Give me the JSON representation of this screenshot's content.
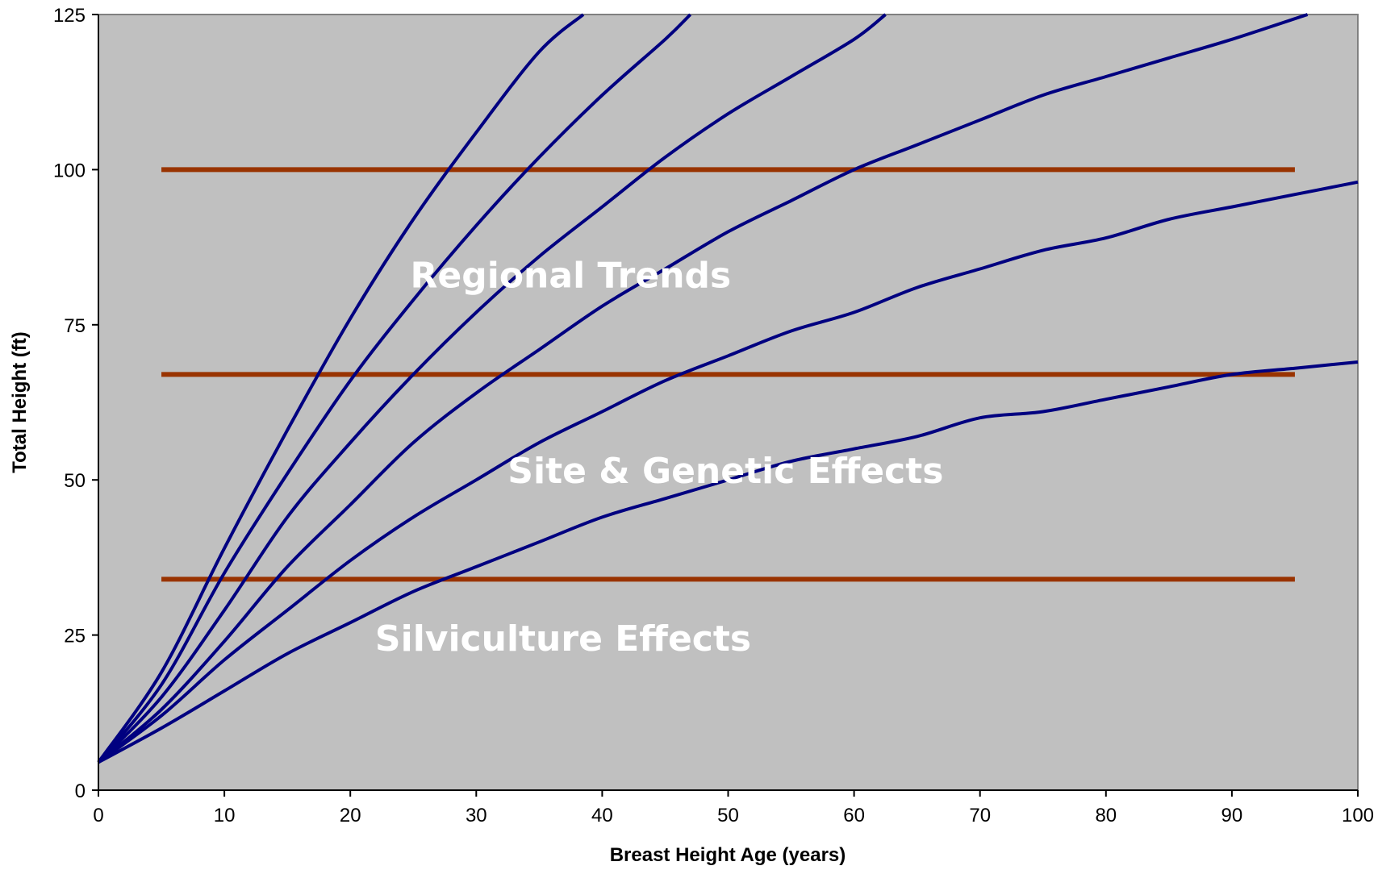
{
  "chart_data": {
    "type": "line",
    "title": "",
    "xlabel": "Breast Height Age (years)",
    "ylabel": "Total Height (ft)",
    "xlim": [
      0,
      100
    ],
    "ylim": [
      0,
      125
    ],
    "x_ticks": [
      0,
      10,
      20,
      30,
      40,
      50,
      60,
      70,
      80,
      90,
      100
    ],
    "y_ticks": [
      0,
      25,
      50,
      75,
      100,
      125
    ],
    "grid": false,
    "legend": "none",
    "colors": {
      "plot_background": "#c0c0c0",
      "curve": "#000080",
      "threshold": "#993300",
      "annotation_text": "#ffffff"
    },
    "curves": [
      {
        "x": [
          0,
          5,
          10,
          15,
          20,
          25,
          30,
          35,
          38.5
        ],
        "y": [
          4.5,
          19,
          39,
          58,
          76,
          92,
          106,
          119,
          125
        ]
      },
      {
        "x": [
          0,
          5,
          10,
          15,
          20,
          25,
          30,
          35,
          40,
          45,
          47
        ],
        "y": [
          4.5,
          17,
          35,
          51,
          66,
          79,
          91,
          102,
          112,
          121,
          125
        ]
      },
      {
        "x": [
          0,
          5,
          10,
          15,
          20,
          25,
          30,
          35,
          40,
          45,
          50,
          55,
          60,
          62.5
        ],
        "y": [
          4.5,
          15,
          29,
          44,
          56,
          67,
          77,
          86,
          94,
          102,
          109,
          115,
          121,
          125
        ]
      },
      {
        "x": [
          0,
          5,
          10,
          15,
          20,
          25,
          30,
          35,
          40,
          45,
          50,
          55,
          60,
          65,
          70,
          75,
          80,
          85,
          90,
          96
        ],
        "y": [
          4.5,
          13,
          24,
          36,
          46,
          56,
          64,
          71,
          78,
          84,
          90,
          95,
          100,
          104,
          108,
          112,
          115,
          118,
          121,
          125
        ]
      },
      {
        "x": [
          0,
          5,
          10,
          15,
          20,
          25,
          30,
          35,
          40,
          45,
          50,
          55,
          60,
          65,
          70,
          75,
          80,
          85,
          90,
          95,
          100
        ],
        "y": [
          4.5,
          12,
          21,
          29,
          37,
          44,
          50,
          56,
          61,
          66,
          70,
          74,
          77,
          81,
          84,
          87,
          89,
          92,
          94,
          96,
          98
        ]
      },
      {
        "x": [
          0,
          5,
          10,
          15,
          20,
          25,
          30,
          35,
          40,
          45,
          50,
          55,
          60,
          65,
          70,
          75,
          80,
          85,
          90,
          95,
          100
        ],
        "y": [
          4.5,
          10,
          16,
          22,
          27,
          32,
          36,
          40,
          44,
          47,
          50,
          53,
          55,
          57,
          60,
          61,
          63,
          65,
          67,
          68,
          69
        ]
      }
    ],
    "thresholds": [
      {
        "x": [
          5,
          95
        ],
        "y": 100
      },
      {
        "x": [
          5,
          95
        ],
        "y": 67
      },
      {
        "x": [
          5,
          95
        ],
        "y": 34
      }
    ],
    "annotations": [
      {
        "text": "Regional Trends",
        "x": 37.5,
        "y": 81
      },
      {
        "text": "Site & Genetic Effects",
        "x": 49.8,
        "y": 49.5
      },
      {
        "text": "Silviculture Effects",
        "x": 36.9,
        "y": 22.5
      }
    ]
  }
}
